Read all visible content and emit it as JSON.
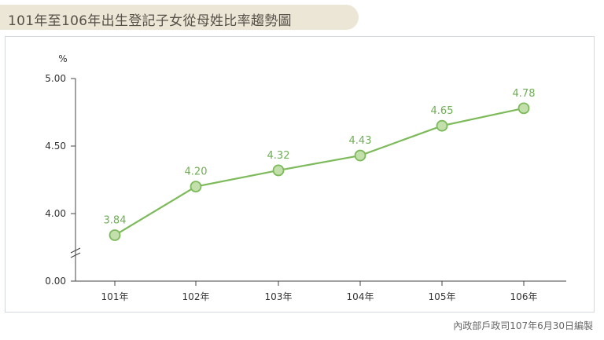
{
  "header": {
    "title": "101年至106年出生登記子女從母姓比率趨勢圖"
  },
  "footer": {
    "source": "內政部戶政司107年6月30日編製"
  },
  "colors": {
    "line": "#7cba5a",
    "marker_fill": "#c3e0ac",
    "label": "#6fae55",
    "axis": "#444444"
  },
  "chart_data": {
    "type": "line",
    "title": "101年至106年出生登記子女從母姓比率趨勢圖",
    "ylabel": "%",
    "xlabel": "",
    "categories": [
      "101年",
      "102年",
      "103年",
      "104年",
      "105年",
      "106年"
    ],
    "series": [
      {
        "values": [
          3.84,
          4.2,
          4.32,
          4.43,
          4.65,
          4.78
        ]
      }
    ],
    "data_labels": [
      "3.84",
      "4.20",
      "4.32",
      "4.43",
      "4.65",
      "4.78"
    ],
    "y_ticks": [
      "0.00",
      "4.00",
      "4.50",
      "5.00"
    ],
    "y_axis_break": true,
    "ylim": [
      3.5,
      5.0
    ],
    "grid": false,
    "legend": "none"
  }
}
